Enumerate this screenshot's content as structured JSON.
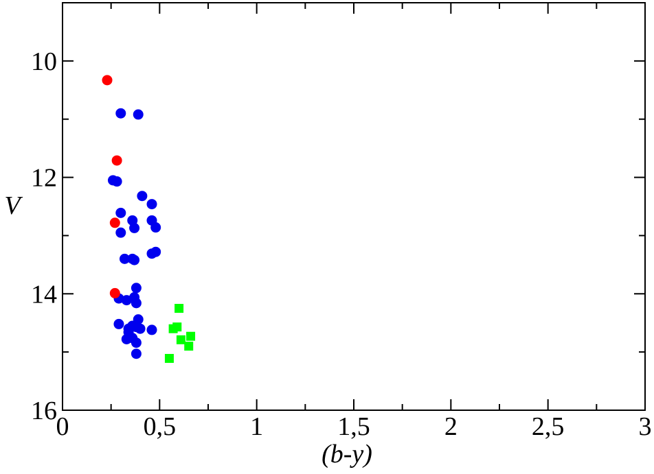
{
  "chart_data": {
    "type": "scatter",
    "title": "",
    "xlabel": "(b-y)",
    "ylabel": "V",
    "xlim": [
      0,
      3
    ],
    "ylim": [
      16,
      9
    ],
    "y_inverted": true,
    "grid": false,
    "legend": "none",
    "x_ticks": [
      {
        "value": 0,
        "label": "0"
      },
      {
        "value": 0.5,
        "label": "0,5"
      },
      {
        "value": 1,
        "label": "1"
      },
      {
        "value": 1.5,
        "label": "1,5"
      },
      {
        "value": 2,
        "label": "2"
      },
      {
        "value": 2.5,
        "label": "2,5"
      },
      {
        "value": 3,
        "label": "3"
      }
    ],
    "y_ticks": [
      {
        "value": 10,
        "label": "10"
      },
      {
        "value": 12,
        "label": "12"
      },
      {
        "value": 14,
        "label": "14"
      },
      {
        "value": 16,
        "label": "16"
      }
    ],
    "series": [
      {
        "marker": "circle",
        "color": "#0000ee",
        "points": [
          {
            "x": 0.3,
            "y": 10.9
          },
          {
            "x": 0.39,
            "y": 10.92
          },
          {
            "x": 0.26,
            "y": 12.05
          },
          {
            "x": 0.28,
            "y": 12.07
          },
          {
            "x": 0.41,
            "y": 12.32
          },
          {
            "x": 0.46,
            "y": 12.46
          },
          {
            "x": 0.3,
            "y": 12.61
          },
          {
            "x": 0.36,
            "y": 12.74
          },
          {
            "x": 0.46,
            "y": 12.74
          },
          {
            "x": 0.37,
            "y": 12.87
          },
          {
            "x": 0.48,
            "y": 12.86
          },
          {
            "x": 0.3,
            "y": 12.95
          },
          {
            "x": 0.48,
            "y": 13.28
          },
          {
            "x": 0.46,
            "y": 13.31
          },
          {
            "x": 0.32,
            "y": 13.4
          },
          {
            "x": 0.36,
            "y": 13.4
          },
          {
            "x": 0.37,
            "y": 13.42
          },
          {
            "x": 0.38,
            "y": 13.9
          },
          {
            "x": 0.37,
            "y": 14.06
          },
          {
            "x": 0.29,
            "y": 14.08
          },
          {
            "x": 0.33,
            "y": 14.11
          },
          {
            "x": 0.38,
            "y": 14.16
          },
          {
            "x": 0.39,
            "y": 14.44
          },
          {
            "x": 0.29,
            "y": 14.52
          },
          {
            "x": 0.36,
            "y": 14.55
          },
          {
            "x": 0.34,
            "y": 14.6
          },
          {
            "x": 0.38,
            "y": 14.57
          },
          {
            "x": 0.4,
            "y": 14.6
          },
          {
            "x": 0.46,
            "y": 14.62
          },
          {
            "x": 0.34,
            "y": 14.66
          },
          {
            "x": 0.33,
            "y": 14.78
          },
          {
            "x": 0.36,
            "y": 14.76
          },
          {
            "x": 0.38,
            "y": 14.84
          },
          {
            "x": 0.38,
            "y": 15.03
          }
        ]
      },
      {
        "marker": "circle",
        "color": "#ff0000",
        "points": [
          {
            "x": 0.23,
            "y": 10.33
          },
          {
            "x": 0.28,
            "y": 11.71
          },
          {
            "x": 0.27,
            "y": 12.78
          },
          {
            "x": 0.27,
            "y": 13.99
          }
        ]
      },
      {
        "marker": "square",
        "color": "#00ff00",
        "points": [
          {
            "x": 0.6,
            "y": 14.25
          },
          {
            "x": 0.59,
            "y": 14.57
          },
          {
            "x": 0.57,
            "y": 14.6
          },
          {
            "x": 0.66,
            "y": 14.73
          },
          {
            "x": 0.61,
            "y": 14.79
          },
          {
            "x": 0.65,
            "y": 14.9
          },
          {
            "x": 0.55,
            "y": 15.11
          }
        ]
      }
    ]
  }
}
